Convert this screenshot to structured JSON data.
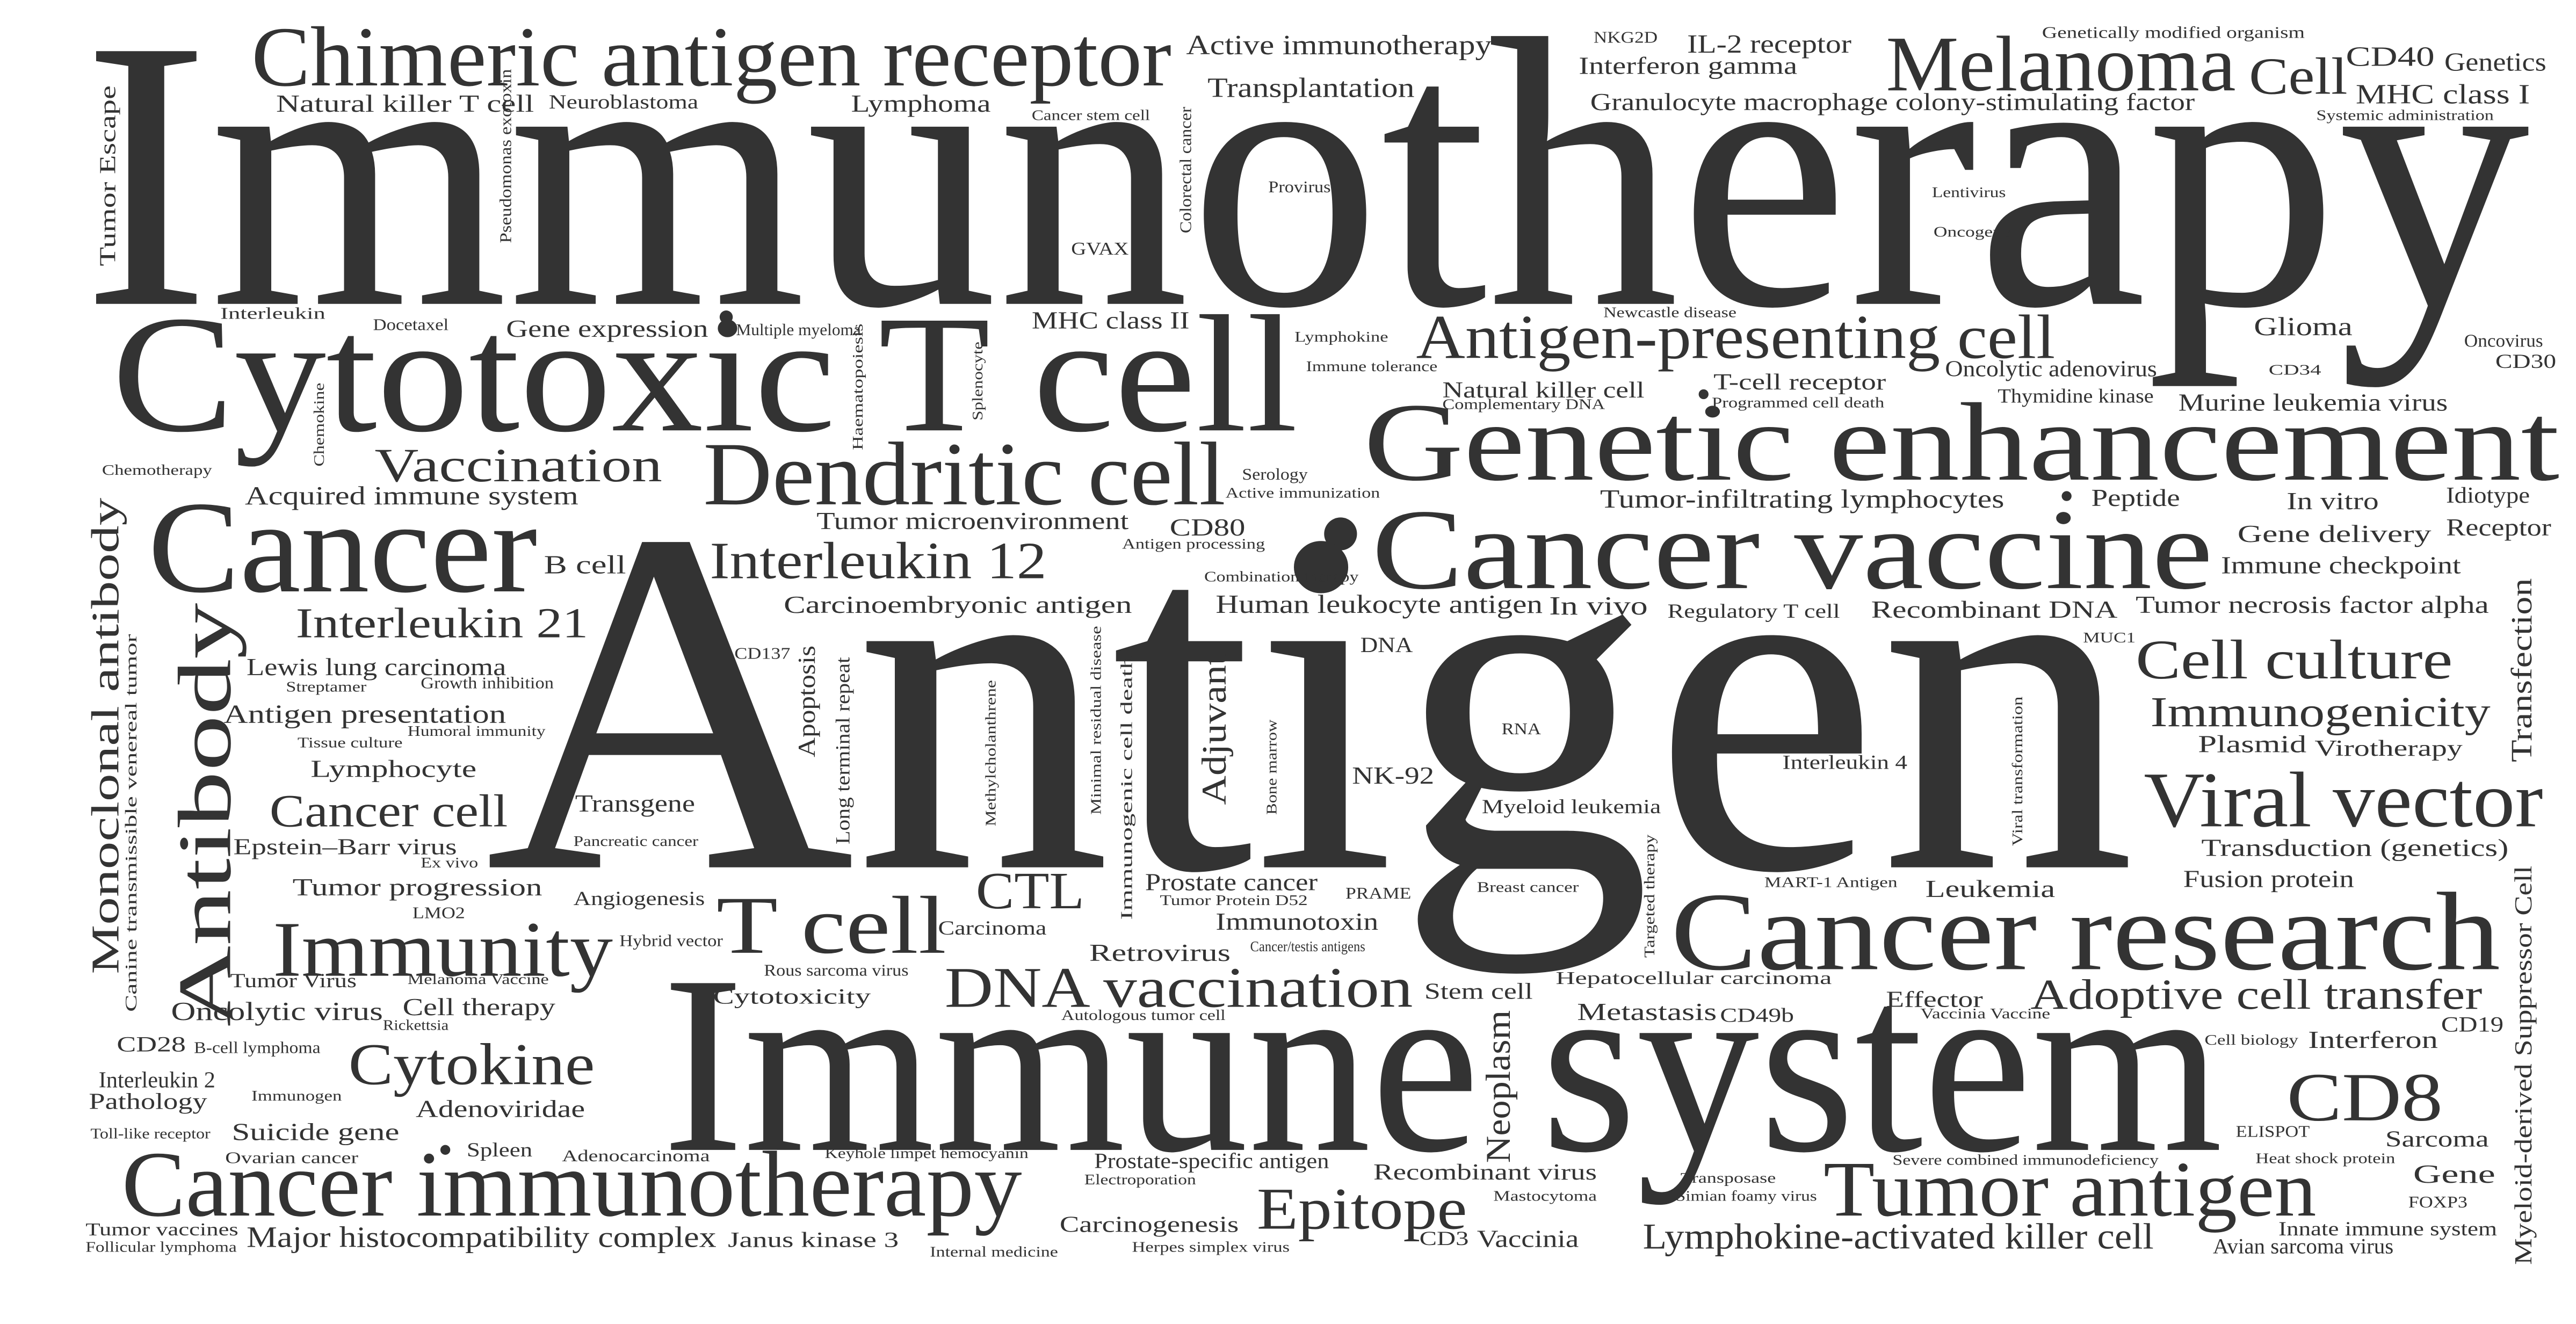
{
  "colors": {
    "text": "#333333",
    "background": "#ffffff"
  },
  "words": [
    {
      "text": "Immunotherapy"
    },
    {
      "text": "Antigen"
    },
    {
      "text": "Immune system"
    },
    {
      "text": "Cytotoxic T cell"
    },
    {
      "text": "Genetic enhancement"
    },
    {
      "text": "Cancer vaccine"
    },
    {
      "text": "Cancer research"
    },
    {
      "text": "Cancer immunotherapy"
    },
    {
      "text": "Cancer"
    },
    {
      "text": "Dendritic cell"
    },
    {
      "text": "Chimeric antigen receptor"
    },
    {
      "text": "Melanoma"
    },
    {
      "text": "Antigen-presenting cell"
    },
    {
      "text": "Tumor antigen"
    },
    {
      "text": "Viral vector"
    },
    {
      "text": "Immunity"
    },
    {
      "text": "T cell"
    },
    {
      "text": "Antibody"
    },
    {
      "text": "DNA vaccination"
    },
    {
      "text": "Monoclonal antibody"
    },
    {
      "text": "Vaccination"
    },
    {
      "text": "CD8"
    },
    {
      "text": "Interleukin 12"
    },
    {
      "text": "Epitope"
    },
    {
      "text": "Cytokine"
    },
    {
      "text": "Adoptive cell transfer"
    },
    {
      "text": "Cell culture"
    },
    {
      "text": "Interleukin 21"
    },
    {
      "text": "Cancer cell"
    },
    {
      "text": "Immunogenicity"
    },
    {
      "text": "CTL"
    },
    {
      "text": "Lymphokine-activated killer cell"
    },
    {
      "text": "Cell"
    },
    {
      "text": "Adjuvant"
    },
    {
      "text": "Major histocompatibility complex"
    },
    {
      "text": "Neoplasm"
    },
    {
      "text": "Transfection"
    },
    {
      "text": "Myeloid-derived Suppressor Cell"
    },
    {
      "text": "Active immunotherapy"
    },
    {
      "text": "Transplantation"
    },
    {
      "text": "Interferon gamma"
    },
    {
      "text": "IL-2 receptor"
    },
    {
      "text": "Granulocyte macrophage colony-stimulating factor"
    },
    {
      "text": "CD40"
    },
    {
      "text": "Genetics"
    },
    {
      "text": "MHC class I"
    },
    {
      "text": "Natural killer T cell"
    },
    {
      "text": "Neuroblastoma"
    },
    {
      "text": "Lymphoma"
    },
    {
      "text": "Tumor Escape"
    },
    {
      "text": "Gene expression"
    },
    {
      "text": "MHC class II"
    },
    {
      "text": "Glioma"
    },
    {
      "text": "Oncolytic adenovirus"
    },
    {
      "text": "Natural killer cell"
    },
    {
      "text": "T-cell receptor"
    },
    {
      "text": "Murine leukemia virus"
    },
    {
      "text": "Acquired immune system"
    },
    {
      "text": "Tumor-infiltrating lymphocytes"
    },
    {
      "text": "Peptide"
    },
    {
      "text": "In vitro"
    },
    {
      "text": "Idiotype"
    },
    {
      "text": "Receptor"
    },
    {
      "text": "Tumor microenvironment"
    },
    {
      "text": "CD80"
    },
    {
      "text": "Gene delivery"
    },
    {
      "text": "Immune checkpoint"
    },
    {
      "text": "B cell"
    },
    {
      "text": "Carcinoembryonic antigen"
    },
    {
      "text": "Human leukocyte antigen"
    },
    {
      "text": "In vivo"
    },
    {
      "text": "Regulatory T cell"
    },
    {
      "text": "Recombinant DNA"
    },
    {
      "text": "Tumor necrosis factor alpha"
    },
    {
      "text": "Lewis lung carcinoma"
    },
    {
      "text": "Antigen presentation"
    },
    {
      "text": "Apoptosis"
    },
    {
      "text": "Long terminal repeat"
    },
    {
      "text": "Plasmid"
    },
    {
      "text": "Virotherapy"
    },
    {
      "text": "Lymphocyte"
    },
    {
      "text": "NK-92"
    },
    {
      "text": "Interleukin 4"
    },
    {
      "text": "Myeloid leukemia"
    },
    {
      "text": "Transgene"
    },
    {
      "text": "Epstein–Barr virus"
    },
    {
      "text": "Transduction (genetics)"
    },
    {
      "text": "Tumor progression"
    },
    {
      "text": "Prostate cancer"
    },
    {
      "text": "Leukemia"
    },
    {
      "text": "Fusion protein"
    },
    {
      "text": "Angiogenesis"
    },
    {
      "text": "Carcinoma"
    },
    {
      "text": "Immunotoxin"
    },
    {
      "text": "Retrovirus"
    },
    {
      "text": "Oncolytic virus"
    },
    {
      "text": "Cell therapy"
    },
    {
      "text": "Cytotoxicity"
    },
    {
      "text": "Stem cell"
    },
    {
      "text": "Metastasis"
    },
    {
      "text": "CD49b"
    },
    {
      "text": "Effector"
    },
    {
      "text": "Interferon"
    },
    {
      "text": "CD19"
    },
    {
      "text": "CD28"
    },
    {
      "text": "Interleukin 2"
    },
    {
      "text": "Pathology"
    },
    {
      "text": "Adenoviridae"
    },
    {
      "text": "Suicide gene"
    },
    {
      "text": "Spleen"
    },
    {
      "text": "Sarcoma"
    },
    {
      "text": "Gene"
    },
    {
      "text": "Recombinant virus"
    },
    {
      "text": "Carcinogenesis"
    },
    {
      "text": "Vaccinia"
    },
    {
      "text": "CD3"
    },
    {
      "text": "Janus kinase 3"
    },
    {
      "text": "Tumor vaccines"
    },
    {
      "text": "Innate immune system"
    },
    {
      "text": "Avian sarcoma virus"
    },
    {
      "text": "Prostate-specific antigen"
    },
    {
      "text": "Tumor Virus"
    },
    {
      "text": "CD30"
    },
    {
      "text": "Oncovirus"
    },
    {
      "text": "Thymidine kinase"
    },
    {
      "text": "Canine transmissible venereal tumor"
    },
    {
      "text": "Interleukin"
    },
    {
      "text": "Docetaxel"
    },
    {
      "text": "Multiple myeloma"
    },
    {
      "text": "Pseudomonas exotoxin"
    },
    {
      "text": "GVAX"
    },
    {
      "text": "Colorectal cancer"
    },
    {
      "text": "Cancer stem cell"
    },
    {
      "text": "Provirus"
    },
    {
      "text": "NKG2D"
    },
    {
      "text": "Genetically modified organism"
    },
    {
      "text": "Systemic administration"
    },
    {
      "text": "Lentivirus"
    },
    {
      "text": "Oncogene"
    },
    {
      "text": "Newcastle disease"
    },
    {
      "text": "Lymphokine"
    },
    {
      "text": "Immune tolerance"
    },
    {
      "text": "Complementary DNA"
    },
    {
      "text": "Programmed cell death"
    },
    {
      "text": "CD34"
    },
    {
      "text": "Chemotherapy"
    },
    {
      "text": "Chemokine"
    },
    {
      "text": "Haematopoiesis"
    },
    {
      "text": "Splenocyte"
    },
    {
      "text": "Serology"
    },
    {
      "text": "Active immunization"
    },
    {
      "text": "Antigen processing"
    },
    {
      "text": "Combination therapy"
    },
    {
      "text": "CD137"
    },
    {
      "text": "Streptamer"
    },
    {
      "text": "Growth inhibition"
    },
    {
      "text": "Humoral immunity"
    },
    {
      "text": "Tissue culture"
    },
    {
      "text": "DNA"
    },
    {
      "text": "RNA"
    },
    {
      "text": "MUC1"
    },
    {
      "text": "Viral transformation"
    },
    {
      "text": "Minimal residual disease"
    },
    {
      "text": "Immunogenic cell death"
    },
    {
      "text": "Methylcholanthrene"
    },
    {
      "text": "Bone marrow"
    },
    {
      "text": "Pancreatic cancer"
    },
    {
      "text": "Ex vivo"
    },
    {
      "text": "LMO2"
    },
    {
      "text": "Hybrid vector"
    },
    {
      "text": "Tumor Protein D52"
    },
    {
      "text": "PRAME"
    },
    {
      "text": "Breast cancer"
    },
    {
      "text": "Targeted therapy"
    },
    {
      "text": "MART-1 Antigen"
    },
    {
      "text": "Cancer/testis antigens"
    },
    {
      "text": "Rous sarcoma virus"
    },
    {
      "text": "Melanoma Vaccine"
    },
    {
      "text": "Rickettsia"
    },
    {
      "text": "Hepatocellular carcinoma"
    },
    {
      "text": "Vaccinia Vaccine"
    },
    {
      "text": "Autologous tumor cell"
    },
    {
      "text": "Cell biology"
    },
    {
      "text": "B-cell lymphoma"
    },
    {
      "text": "Immunogen"
    },
    {
      "text": "Toll-like receptor"
    },
    {
      "text": "Ovarian cancer"
    },
    {
      "text": "Adenocarcinoma"
    },
    {
      "text": "Keyhole limpet hemocyanin"
    },
    {
      "text": "Electroporation"
    },
    {
      "text": "Severe combined immunodeficiency"
    },
    {
      "text": "ELISPOT"
    },
    {
      "text": "Heat shock protein"
    },
    {
      "text": "FOXP3"
    },
    {
      "text": "Transposase"
    },
    {
      "text": "Simian foamy virus"
    },
    {
      "text": "Mastocytoma"
    },
    {
      "text": "Internal medicine"
    },
    {
      "text": "Herpes simplex virus"
    },
    {
      "text": "Follicular lymphoma"
    }
  ]
}
